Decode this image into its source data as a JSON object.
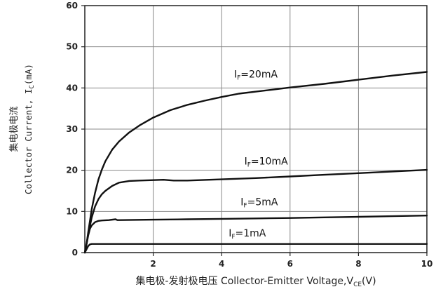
{
  "chart_data": {
    "type": "line",
    "title": "",
    "xlabel": {
      "prefix": "集电极-发射极电压 Collector-Emitter Voltage,V",
      "sub": "CE",
      "suffix": "(V)"
    },
    "ylabel": {
      "cn": "集电极电流",
      "en_prefix": "Collector Current, I",
      "en_sub": "C",
      "en_suffix": "(mA)"
    },
    "xlim": [
      0,
      10
    ],
    "ylim": [
      0,
      60
    ],
    "xticks": [
      "2",
      "4",
      "6",
      "8",
      "10"
    ],
    "xtick_values": [
      2,
      4,
      6,
      8,
      10
    ],
    "yticks": [
      "0",
      "10",
      "20",
      "30",
      "40",
      "50",
      "60"
    ],
    "ytick_values": [
      0,
      10,
      20,
      30,
      40,
      50,
      60
    ],
    "grid": true,
    "series": [
      {
        "label": {
          "prefix": "I",
          "sub": "F",
          "suffix": "=20mA"
        },
        "label_at": [
          5.0,
          42.5
        ],
        "x": [
          0,
          0.05,
          0.1,
          0.2,
          0.3,
          0.4,
          0.5,
          0.6,
          0.8,
          1.0,
          1.3,
          1.6,
          2.0,
          2.5,
          3.0,
          3.5,
          4.0,
          4.5,
          5.0,
          5.5,
          6.0,
          7.0,
          8.0,
          9.0,
          10.0
        ],
        "values": [
          0,
          2,
          5,
          10.5,
          14.5,
          17.8,
          20.2,
          22.2,
          25.0,
          27.0,
          29.2,
          30.9,
          32.8,
          34.6,
          35.9,
          36.9,
          37.8,
          38.6,
          39.1,
          39.6,
          40.1,
          41.0,
          42.0,
          43.0,
          43.9
        ]
      },
      {
        "label": {
          "prefix": "I",
          "sub": "F",
          "suffix": "=10mA"
        },
        "label_at": [
          5.3,
          21.4
        ],
        "x": [
          0,
          0.05,
          0.1,
          0.2,
          0.3,
          0.4,
          0.5,
          0.6,
          0.8,
          1.0,
          1.3,
          1.6,
          2.0,
          2.3,
          2.6,
          3.0,
          4.0,
          5.0,
          6.0,
          7.0,
          8.0,
          9.0,
          10.0
        ],
        "values": [
          0,
          2,
          4.5,
          8.5,
          11.2,
          13.0,
          14.2,
          15.0,
          16.2,
          17.0,
          17.4,
          17.5,
          17.6,
          17.7,
          17.5,
          17.5,
          17.8,
          18.1,
          18.5,
          18.9,
          19.3,
          19.7,
          20.1
        ]
      },
      {
        "label": {
          "prefix": "I",
          "sub": "F",
          "suffix": "=5mA"
        },
        "label_at": [
          5.1,
          11.5
        ],
        "x": [
          0,
          0.05,
          0.1,
          0.15,
          0.2,
          0.3,
          0.4,
          0.5,
          0.7,
          0.9,
          0.95,
          1.0,
          2.0,
          3.0,
          4.0,
          5.0,
          6.0,
          7.0,
          8.0,
          9.0,
          10.0
        ],
        "values": [
          0,
          2,
          4.2,
          5.8,
          6.6,
          7.4,
          7.7,
          7.8,
          7.9,
          8.1,
          7.9,
          7.9,
          8.0,
          8.1,
          8.2,
          8.3,
          8.4,
          8.55,
          8.7,
          8.85,
          9.0
        ]
      },
      {
        "label": {
          "prefix": "I",
          "sub": "F",
          "suffix": "=1mA"
        },
        "label_at": [
          4.75,
          3.9
        ],
        "x": [
          0,
          0.05,
          0.1,
          0.15,
          0.2,
          0.3,
          0.5,
          1.0,
          2.0,
          4.0,
          6.0,
          8.0,
          10.0
        ],
        "values": [
          0,
          0.8,
          1.6,
          2.0,
          2.1,
          2.1,
          2.1,
          2.1,
          2.1,
          2.1,
          2.1,
          2.1,
          2.1
        ]
      }
    ]
  }
}
